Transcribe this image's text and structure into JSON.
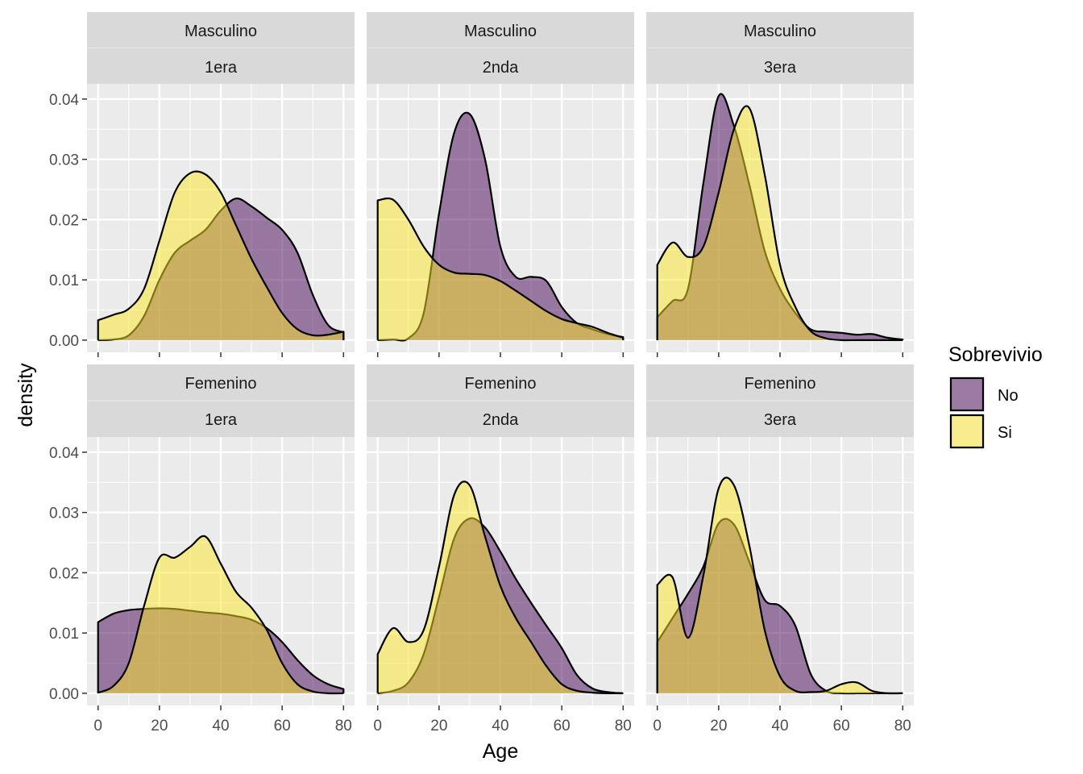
{
  "chart_data": {
    "type": "area",
    "subtype": "density",
    "xlabel": "Age",
    "ylabel": "density",
    "xlim": [
      0,
      80
    ],
    "ylim": [
      0,
      0.04
    ],
    "x_ticks": [
      0,
      20,
      40,
      60,
      80
    ],
    "x_tick_labels": [
      "0",
      "20",
      "40",
      "60",
      "80"
    ],
    "y_ticks": [
      0,
      0.01,
      0.02,
      0.03,
      0.04
    ],
    "y_tick_labels": [
      "0.00",
      "0.01",
      "0.02",
      "0.03",
      "0.04"
    ],
    "grid": true,
    "legend": {
      "title": "Sobrevivio",
      "placement": "right",
      "entries": [
        {
          "name": "No",
          "color": "#440154"
        },
        {
          "name": "Si",
          "color": "#FDE725"
        }
      ]
    },
    "facets": [
      {
        "row_label": "Masculino",
        "col_label": "1era",
        "series": [
          {
            "name": "No",
            "x": [
              0,
              5,
              10,
              15,
              20,
              25,
              30,
              35,
              40,
              45,
              50,
              55,
              60,
              65,
              70,
              75,
              80
            ],
            "y": [
              0.0,
              0.0001,
              0.0008,
              0.004,
              0.01,
              0.0145,
              0.0165,
              0.0183,
              0.0215,
              0.0235,
              0.0222,
              0.0203,
              0.0183,
              0.0145,
              0.0075,
              0.0025,
              0.0013
            ]
          },
          {
            "name": "Si",
            "x": [
              0,
              5,
              10,
              15,
              20,
              25,
              30,
              35,
              40,
              45,
              50,
              55,
              60,
              65,
              70,
              75,
              80
            ],
            "y": [
              0.0033,
              0.0042,
              0.0052,
              0.0085,
              0.0165,
              0.0245,
              0.0277,
              0.0275,
              0.0245,
              0.019,
              0.0135,
              0.0088,
              0.0045,
              0.0018,
              0.0008,
              0.0009,
              0.0014
            ]
          }
        ]
      },
      {
        "row_label": "Masculino",
        "col_label": "2nda",
        "series": [
          {
            "name": "No",
            "x": [
              0,
              5,
              10,
              15,
              20,
              25,
              30,
              35,
              40,
              45,
              50,
              55,
              60,
              65,
              70,
              75,
              80
            ],
            "y": [
              0.0,
              0.0001,
              0.0003,
              0.0045,
              0.021,
              0.0345,
              0.0375,
              0.03,
              0.0155,
              0.0105,
              0.0105,
              0.0098,
              0.0055,
              0.0028,
              0.0018,
              0.001,
              0.0005
            ]
          },
          {
            "name": "Si",
            "x": [
              0,
              5,
              10,
              15,
              20,
              25,
              30,
              35,
              40,
              45,
              50,
              55,
              60,
              65,
              70,
              75,
              80
            ],
            "y": [
              0.0232,
              0.0233,
              0.02,
              0.0155,
              0.0125,
              0.0112,
              0.011,
              0.0108,
              0.0098,
              0.0082,
              0.0065,
              0.0048,
              0.0035,
              0.0028,
              0.0022,
              0.0012,
              0.0004
            ]
          }
        ]
      },
      {
        "row_label": "Masculino",
        "col_label": "3era",
        "series": [
          {
            "name": "No",
            "x": [
              0,
              5,
              10,
              15,
              20,
              25,
              30,
              35,
              40,
              45,
              50,
              55,
              60,
              65,
              70,
              75,
              80
            ],
            "y": [
              0.0038,
              0.0065,
              0.0085,
              0.026,
              0.0405,
              0.0355,
              0.0258,
              0.0148,
              0.0085,
              0.0045,
              0.0018,
              0.0014,
              0.0012,
              0.0009,
              0.001,
              0.0004,
              0.0001
            ]
          },
          {
            "name": "Si",
            "x": [
              0,
              5,
              10,
              15,
              20,
              25,
              30,
              35,
              40,
              45,
              50,
              55,
              60,
              65,
              70,
              75,
              80
            ],
            "y": [
              0.0125,
              0.0162,
              0.0138,
              0.0155,
              0.0245,
              0.035,
              0.0385,
              0.0275,
              0.0125,
              0.0055,
              0.0015,
              0.0003,
              0.0,
              0.0,
              0.0,
              0.0,
              0.0
            ]
          }
        ]
      },
      {
        "row_label": "Femenino",
        "col_label": "1era",
        "series": [
          {
            "name": "No",
            "x": [
              0,
              5,
              10,
              15,
              20,
              25,
              30,
              35,
              40,
              45,
              50,
              55,
              60,
              65,
              70,
              75,
              80
            ],
            "y": [
              0.0118,
              0.0132,
              0.0138,
              0.014,
              0.0141,
              0.014,
              0.0137,
              0.0134,
              0.0132,
              0.0128,
              0.0122,
              0.0108,
              0.0085,
              0.0055,
              0.003,
              0.0015,
              0.0007
            ]
          },
          {
            "name": "Si",
            "x": [
              0,
              5,
              10,
              15,
              20,
              25,
              30,
              35,
              40,
              45,
              50,
              55,
              60,
              65,
              70,
              75,
              80
            ],
            "y": [
              0.0001,
              0.0012,
              0.005,
              0.0145,
              0.0225,
              0.0225,
              0.0243,
              0.026,
              0.0215,
              0.0168,
              0.0142,
              0.0105,
              0.005,
              0.0015,
              0.0003,
              0.0,
              0.0
            ]
          }
        ]
      },
      {
        "row_label": "Femenino",
        "col_label": "2nda",
        "series": [
          {
            "name": "No",
            "x": [
              0,
              5,
              10,
              15,
              20,
              25,
              30,
              35,
              40,
              45,
              50,
              55,
              60,
              65,
              70,
              75,
              80
            ],
            "y": [
              0.0,
              0.0004,
              0.0018,
              0.0065,
              0.016,
              0.0258,
              0.029,
              0.0275,
              0.0235,
              0.019,
              0.015,
              0.0112,
              0.0075,
              0.003,
              0.0008,
              0.0002,
              0.0
            ]
          },
          {
            "name": "Si",
            "x": [
              0,
              5,
              10,
              15,
              20,
              25,
              30,
              35,
              40,
              45,
              50,
              55,
              60,
              65,
              70,
              75,
              80
            ],
            "y": [
              0.0065,
              0.0108,
              0.0085,
              0.0105,
              0.021,
              0.033,
              0.0345,
              0.026,
              0.0178,
              0.0125,
              0.0085,
              0.0045,
              0.0015,
              0.0004,
              0.0001,
              0.0,
              0.0
            ]
          }
        ]
      },
      {
        "row_label": "Femenino",
        "col_label": "3era",
        "series": [
          {
            "name": "No",
            "x": [
              0,
              5,
              10,
              15,
              20,
              25,
              30,
              35,
              40,
              45,
              50,
              55,
              60,
              65,
              70,
              75,
              80
            ],
            "y": [
              0.0085,
              0.0125,
              0.0165,
              0.021,
              0.0282,
              0.028,
              0.0218,
              0.0155,
              0.0145,
              0.0112,
              0.0032,
              0.0004,
              0.0,
              0.0,
              0.0,
              0.0,
              0.0
            ]
          },
          {
            "name": "Si",
            "x": [
              0,
              5,
              10,
              15,
              20,
              25,
              30,
              35,
              40,
              45,
              50,
              55,
              60,
              65,
              70,
              75,
              80
            ],
            "y": [
              0.018,
              0.0192,
              0.0092,
              0.0195,
              0.034,
              0.0345,
              0.0245,
              0.0105,
              0.0028,
              0.0004,
              0.0002,
              0.0004,
              0.0015,
              0.0018,
              0.0004,
              0.0,
              0.0
            ]
          }
        ]
      }
    ]
  }
}
